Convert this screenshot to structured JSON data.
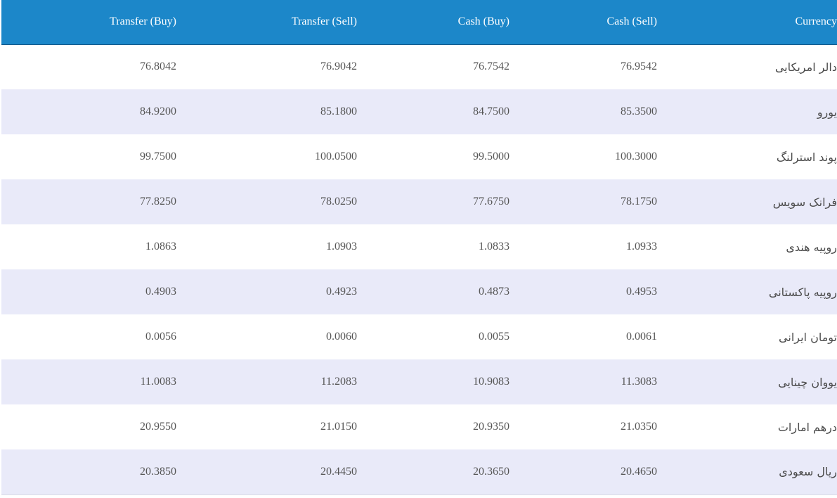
{
  "table": {
    "headers": {
      "transfer_buy": "Transfer (Buy)",
      "transfer_sell": "Transfer (Sell)",
      "cash_buy": "Cash (Buy)",
      "cash_sell": "Cash (Sell)",
      "currency": "Currency"
    },
    "rows": [
      {
        "transfer_buy": "76.8042",
        "transfer_sell": "76.9042",
        "cash_buy": "76.7542",
        "cash_sell": "76.9542",
        "currency": "دالر امریکایی"
      },
      {
        "transfer_buy": "84.9200",
        "transfer_sell": "85.1800",
        "cash_buy": "84.7500",
        "cash_sell": "85.3500",
        "currency": "یورو"
      },
      {
        "transfer_buy": "99.7500",
        "transfer_sell": "100.0500",
        "cash_buy": "99.5000",
        "cash_sell": "100.3000",
        "currency": "پوند استرلنگ"
      },
      {
        "transfer_buy": "77.8250",
        "transfer_sell": "78.0250",
        "cash_buy": "77.6750",
        "cash_sell": "78.1750",
        "currency": "فرانک سویس"
      },
      {
        "transfer_buy": "1.0863",
        "transfer_sell": "1.0903",
        "cash_buy": "1.0833",
        "cash_sell": "1.0933",
        "currency": "روپیه هندی"
      },
      {
        "transfer_buy": "0.4903",
        "transfer_sell": "0.4923",
        "cash_buy": "0.4873",
        "cash_sell": "0.4953",
        "currency": "روپیه پاکستانی"
      },
      {
        "transfer_buy": "0.0056",
        "transfer_sell": "0.0060",
        "cash_buy": "0.0055",
        "cash_sell": "0.0061",
        "currency": "تومان ایرانی"
      },
      {
        "transfer_buy": "11.0083",
        "transfer_sell": "11.2083",
        "cash_buy": "10.9083",
        "cash_sell": "11.3083",
        "currency": "یووان چینایی"
      },
      {
        "transfer_buy": "20.9550",
        "transfer_sell": "21.0150",
        "cash_buy": "20.9350",
        "cash_sell": "21.0350",
        "currency": "درهم امارات"
      },
      {
        "transfer_buy": "20.3850",
        "transfer_sell": "20.4450",
        "cash_buy": "20.3650",
        "cash_sell": "20.4650",
        "currency": "ریال سعودی"
      }
    ]
  },
  "colors": {
    "header_background": "#1c87c9",
    "header_text": "#ffffff",
    "row_alternate": "#e9eaf9",
    "row_default": "#ffffff",
    "cell_text": "#555555"
  }
}
